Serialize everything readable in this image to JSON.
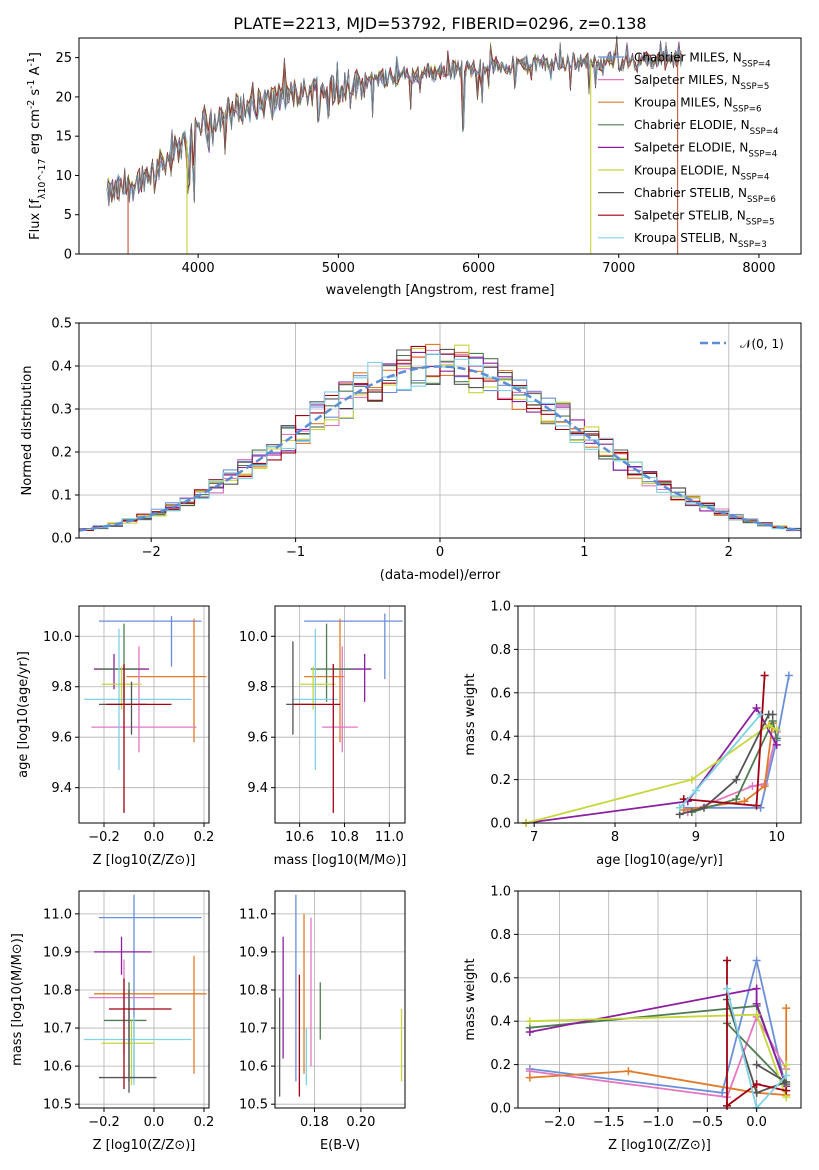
{
  "figure_title": "PLATE=2213, MJD=53792, FIBERID=0296, z=0.138",
  "colors": [
    "#ff7f0e",
    "#1f77b4",
    "#2ca02c",
    "#4e7d52",
    "#8c1fa0",
    "#c7d63a",
    "#555555",
    "#a00012",
    "#7fd3e6",
    "#e377c2",
    "#6a8fd8"
  ],
  "chart_data": [
    {
      "id": "spectrum",
      "type": "line",
      "xlabel": "wavelength [Angstrom, rest frame]",
      "ylabel": "Flux [f_λ10^-17 erg cm^-2 s^-1 A^-1]",
      "xlim": [
        3150,
        8300
      ],
      "ylim": [
        0,
        27.5
      ],
      "xticks": [
        4000,
        5000,
        6000,
        7000,
        8000
      ],
      "yticks": [
        0,
        5,
        10,
        15,
        20,
        25
      ],
      "grid": false,
      "legend_position": "right",
      "series": [
        {
          "name": "Chabrier MILES, N_SSP=4",
          "color": "#6a8fd8"
        },
        {
          "name": "Salpeter MILES, N_SSP=5",
          "color": "#e377c2"
        },
        {
          "name": "Kroupa MILES, N_SSP=6",
          "color": "#e07b2a"
        },
        {
          "name": "Chabrier ELODIE, N_SSP=4",
          "color": "#4e7d52"
        },
        {
          "name": "Salpeter ELODIE, N_SSP=4",
          "color": "#8c1fa0"
        },
        {
          "name": "Kroupa ELODIE, N_SSP=4",
          "color": "#c7d63a"
        },
        {
          "name": "Chabrier STELIB, N_SSP=6",
          "color": "#555555"
        },
        {
          "name": "Salpeter STELIB, N_SSP=5",
          "color": "#a00012"
        },
        {
          "name": "Kroupa STELIB, N_SSP=3",
          "color": "#7fd3e6"
        }
      ],
      "continuum": {
        "x": [
          3350,
          3500,
          3700,
          3900,
          4000,
          4200,
          4500,
          4800,
          5000,
          5300,
          5600,
          6000,
          6400,
          6800,
          7200,
          7450
        ],
        "y": [
          7.5,
          8.5,
          11,
          14,
          16.5,
          18,
          19.5,
          20.8,
          21.2,
          22.3,
          23,
          23.8,
          24.2,
          24.5,
          24.6,
          24.7
        ]
      }
    },
    {
      "id": "residuals",
      "type": "line",
      "xlabel": "(data-model)/error",
      "ylabel": "Normed distribution",
      "xlim": [
        -2.5,
        2.5
      ],
      "ylim": [
        0,
        0.5
      ],
      "xticks": [
        -2,
        -1,
        0,
        1,
        2
      ],
      "yticks": [
        0.0,
        0.1,
        0.2,
        0.3,
        0.4,
        0.5
      ],
      "grid": true,
      "legend_position": "upper right",
      "legend_label": "𝒩(0, 1)",
      "bin_width": 0.1
    },
    {
      "id": "age-vs-Z",
      "type": "scatter",
      "xlabel": "Z [log10(Z/Z⊙)]",
      "ylabel": "age  [log10(age/yr)]",
      "xlim": [
        -0.3,
        0.22
      ],
      "ylim": [
        9.26,
        10.12
      ],
      "xticks": [
        -0.2,
        0.0,
        0.2
      ],
      "yticks": [
        9.4,
        9.6,
        9.8,
        10.0
      ],
      "grid": true,
      "points": [
        {
          "color": "#6a8fd8",
          "x": 0.07,
          "xlo": -0.22,
          "xhi": 0.19,
          "y": 10.06,
          "ylo": 9.88,
          "yhi": 10.08
        },
        {
          "color": "#e07b2a",
          "x": 0.16,
          "xlo": -0.11,
          "xhi": 0.21,
          "y": 9.84,
          "ylo": 9.58,
          "yhi": 10.07
        },
        {
          "color": "#e377c2",
          "x": -0.06,
          "xlo": -0.25,
          "xhi": 0.17,
          "y": 9.64,
          "ylo": 9.54,
          "yhi": 9.96
        },
        {
          "color": "#8c1fa0",
          "x": -0.16,
          "xlo": -0.24,
          "xhi": -0.02,
          "y": 9.87,
          "ylo": 9.79,
          "yhi": 9.93
        },
        {
          "color": "#4e7d52",
          "x": -0.12,
          "xlo": -0.22,
          "xhi": -0.06,
          "y": 9.87,
          "ylo": 9.74,
          "yhi": 10.05
        },
        {
          "color": "#c7d63a",
          "x": -0.13,
          "xlo": -0.21,
          "xhi": -0.05,
          "y": 9.81,
          "ylo": 9.71,
          "yhi": 9.88
        },
        {
          "color": "#7fd3e6",
          "x": -0.14,
          "xlo": -0.28,
          "xhi": 0.15,
          "y": 9.75,
          "ylo": 9.47,
          "yhi": 10.03
        },
        {
          "color": "#555555",
          "x": -0.09,
          "xlo": -0.22,
          "xhi": -0.03,
          "y": 9.73,
          "ylo": 9.61,
          "yhi": 9.82
        },
        {
          "color": "#a00012",
          "x": -0.12,
          "xlo": -0.19,
          "xhi": 0.07,
          "y": 9.73,
          "ylo": 9.3,
          "yhi": 9.89
        }
      ]
    },
    {
      "id": "age-vs-mass",
      "type": "scatter",
      "xlabel": "mass [log10(M/M⊙)]",
      "ylabel": "",
      "xlim": [
        10.49,
        11.07
      ],
      "ylim": [
        9.26,
        10.12
      ],
      "xticks": [
        10.6,
        10.8,
        11.0
      ],
      "yticks": [
        9.4,
        9.6,
        9.8,
        10.0
      ],
      "grid": true,
      "points": [
        {
          "color": "#6a8fd8",
          "x": 10.98,
          "xlo": 10.62,
          "xhi": 11.06,
          "y": 10.06,
          "ylo": 9.83,
          "yhi": 10.09
        },
        {
          "color": "#e07b2a",
          "x": 10.78,
          "xlo": 10.62,
          "xhi": 10.8,
          "y": 9.84,
          "ylo": 9.58,
          "yhi": 10.07
        },
        {
          "color": "#e377c2",
          "x": 10.79,
          "xlo": 10.7,
          "xhi": 10.86,
          "y": 9.64,
          "ylo": 9.54,
          "yhi": 9.96
        },
        {
          "color": "#8c1fa0",
          "x": 10.89,
          "xlo": 10.75,
          "xhi": 10.92,
          "y": 9.87,
          "ylo": 9.74,
          "yhi": 9.93
        },
        {
          "color": "#4e7d52",
          "x": 10.72,
          "xlo": 10.65,
          "xhi": 10.84,
          "y": 9.87,
          "ylo": 9.74,
          "yhi": 10.05
        },
        {
          "color": "#c7d63a",
          "x": 10.66,
          "xlo": 10.6,
          "xhi": 10.76,
          "y": 9.81,
          "ylo": 9.71,
          "yhi": 9.88
        },
        {
          "color": "#7fd3e6",
          "x": 10.67,
          "xlo": 10.57,
          "xhi": 10.77,
          "y": 9.75,
          "ylo": 9.47,
          "yhi": 10.03
        },
        {
          "color": "#555555",
          "x": 10.57,
          "xlo": 10.54,
          "xhi": 10.65,
          "y": 9.73,
          "ylo": 9.61,
          "yhi": 9.98
        },
        {
          "color": "#a00012",
          "x": 10.75,
          "xlo": 10.57,
          "xhi": 10.78,
          "y": 9.73,
          "ylo": 9.3,
          "yhi": 9.89
        }
      ]
    },
    {
      "id": "weight-vs-age",
      "type": "line",
      "xlabel": "age  [log10(age/yr)]",
      "ylabel": "mass weight",
      "xlim": [
        6.8,
        10.3
      ],
      "ylim": [
        0,
        1.0
      ],
      "xticks": [
        7,
        8,
        9,
        10
      ],
      "yticks": [
        0.0,
        0.2,
        0.4,
        0.6,
        0.8,
        1.0
      ],
      "grid": true,
      "series": [
        {
          "color": "#6a8fd8",
          "x": [
            8.85,
            9.8,
            10.0,
            10.15
          ],
          "y": [
            0.07,
            0.07,
            0.38,
            0.68
          ]
        },
        {
          "color": "#e377c2",
          "x": [
            8.9,
            9.7,
            9.85,
            10.0
          ],
          "y": [
            0.05,
            0.17,
            0.18,
            0.42
          ]
        },
        {
          "color": "#e07b2a",
          "x": [
            8.85,
            9.6,
            9.85,
            9.95
          ],
          "y": [
            0.06,
            0.1,
            0.17,
            0.46
          ]
        },
        {
          "color": "#4e7d52",
          "x": [
            8.95,
            9.5,
            9.95,
            10.0
          ],
          "y": [
            0.05,
            0.11,
            0.47,
            0.39
          ]
        },
        {
          "color": "#8c1fa0",
          "x": [
            6.9,
            8.9,
            9.75,
            10.0
          ],
          "y": [
            0.0,
            0.1,
            0.53,
            0.36
          ]
        },
        {
          "color": "#c7d63a",
          "x": [
            6.9,
            8.95,
            9.9,
            10.0
          ],
          "y": [
            0.0,
            0.2,
            0.45,
            0.43
          ]
        },
        {
          "color": "#555555",
          "x": [
            8.8,
            9.1,
            9.5,
            9.9,
            9.95
          ],
          "y": [
            0.04,
            0.07,
            0.2,
            0.5,
            0.5
          ]
        },
        {
          "color": "#a00012",
          "x": [
            8.85,
            9.75,
            9.85
          ],
          "y": [
            0.11,
            0.08,
            0.68
          ]
        },
        {
          "color": "#7fd3e6",
          "x": [
            8.8,
            9.0,
            9.8
          ],
          "y": [
            0.07,
            0.15,
            0.5
          ]
        }
      ]
    },
    {
      "id": "mass-vs-Z",
      "type": "scatter",
      "xlabel": "Z [log10(Z/Z⊙)]",
      "ylabel": "mass [log10(M/M⊙)]",
      "xlim": [
        -0.3,
        0.22
      ],
      "ylim": [
        10.49,
        11.06
      ],
      "xticks": [
        -0.2,
        0.0,
        0.2
      ],
      "yticks": [
        10.5,
        10.6,
        10.7,
        10.8,
        10.9,
        11.0
      ],
      "grid": true,
      "points": [
        {
          "color": "#6a8fd8",
          "x": -0.08,
          "xlo": -0.22,
          "xhi": 0.19,
          "y": 10.99,
          "ylo": 10.57,
          "yhi": 11.05
        },
        {
          "color": "#e07b2a",
          "x": 0.16,
          "xlo": -0.24,
          "xhi": 0.21,
          "y": 10.79,
          "ylo": 10.58,
          "yhi": 10.89
        },
        {
          "color": "#e377c2",
          "x": -0.12,
          "xlo": -0.26,
          "xhi": 0.0,
          "y": 10.78,
          "ylo": 10.63,
          "yhi": 10.88
        },
        {
          "color": "#8c1fa0",
          "x": -0.13,
          "xlo": -0.24,
          "xhi": -0.01,
          "y": 10.9,
          "ylo": 10.84,
          "yhi": 10.94
        },
        {
          "color": "#4e7d52",
          "x": -0.1,
          "xlo": -0.2,
          "xhi": -0.03,
          "y": 10.72,
          "ylo": 10.56,
          "yhi": 10.82
        },
        {
          "color": "#c7d63a",
          "x": -0.09,
          "xlo": -0.21,
          "xhi": 0.0,
          "y": 10.66,
          "ylo": 10.55,
          "yhi": 10.72
        },
        {
          "color": "#7fd3e6",
          "x": -0.08,
          "xlo": -0.28,
          "xhi": 0.15,
          "y": 10.67,
          "ylo": 10.55,
          "yhi": 10.73
        },
        {
          "color": "#555555",
          "x": -0.1,
          "xlo": -0.22,
          "xhi": 0.01,
          "y": 10.57,
          "ylo": 10.53,
          "yhi": 10.8
        },
        {
          "color": "#a00012",
          "x": -0.12,
          "xlo": -0.18,
          "xhi": 0.07,
          "y": 10.75,
          "ylo": 10.54,
          "yhi": 10.83
        }
      ]
    },
    {
      "id": "mass-vs-EBV",
      "type": "scatter",
      "xlabel": "E(B-V)",
      "ylabel": "",
      "xlim": [
        0.163,
        0.219
      ],
      "ylim": [
        10.49,
        11.06
      ],
      "xticks": [
        0.18,
        0.2
      ],
      "yticks": [
        10.5,
        10.6,
        10.7,
        10.8,
        10.9,
        11.0
      ],
      "grid": true,
      "points": [
        {
          "color": "#6a8fd8",
          "x": 0.172,
          "ylo": 10.56,
          "yhi": 11.05
        },
        {
          "color": "#e07b2a",
          "x": 0.1755,
          "ylo": 10.58,
          "yhi": 11.0
        },
        {
          "color": "#e377c2",
          "x": 0.1785,
          "ylo": 10.6,
          "yhi": 10.99
        },
        {
          "color": "#8c1fa0",
          "x": 0.1665,
          "ylo": 10.62,
          "yhi": 10.94
        },
        {
          "color": "#4e7d52",
          "x": 0.1825,
          "ylo": 10.67,
          "yhi": 10.82
        },
        {
          "color": "#c7d63a",
          "x": 0.2175,
          "ylo": 10.56,
          "yhi": 10.75
        },
        {
          "color": "#7fd3e6",
          "x": 0.1765,
          "ylo": 10.55,
          "yhi": 10.7
        },
        {
          "color": "#555555",
          "x": 0.165,
          "ylo": 10.52,
          "yhi": 10.78
        },
        {
          "color": "#a00012",
          "x": 0.1735,
          "ylo": 10.52,
          "yhi": 10.84
        }
      ]
    },
    {
      "id": "weight-vs-Z",
      "type": "line",
      "xlabel": "Z [log10(Z/Z⊙)]",
      "ylabel": "mass weight",
      "xlim": [
        -2.42,
        0.45
      ],
      "ylim": [
        0,
        1.0
      ],
      "xticks": [
        -2.0,
        -1.5,
        -1.0,
        -0.5,
        0.0
      ],
      "yticks": [
        0.0,
        0.2,
        0.4,
        0.6,
        0.8,
        1.0
      ],
      "grid": true,
      "series": [
        {
          "color": "#6a8fd8",
          "x": [
            -2.3,
            -0.35,
            0.0,
            0.3
          ],
          "y": [
            0.18,
            0.07,
            0.68,
            0.08
          ]
        },
        {
          "color": "#e377c2",
          "x": [
            -2.3,
            -0.3,
            0.0,
            0.3
          ],
          "y": [
            0.17,
            0.05,
            0.42,
            0.18
          ]
        },
        {
          "color": "#e07b2a",
          "x": [
            -2.3,
            -1.3,
            0.0,
            0.3,
            0.3
          ],
          "y": [
            0.14,
            0.17,
            0.07,
            0.06,
            0.46
          ]
        },
        {
          "color": "#4e7d52",
          "x": [
            -2.3,
            0.0,
            0.3,
            -0.3
          ],
          "y": [
            0.37,
            0.47,
            0.11,
            0.39
          ]
        },
        {
          "color": "#8c1fa0",
          "x": [
            -2.3,
            0.0,
            0.0,
            0.3
          ],
          "y": [
            0.35,
            0.55,
            0.48,
            0.1
          ]
        },
        {
          "color": "#c7d63a",
          "x": [
            -2.3,
            0.0,
            0.3,
            0.3
          ],
          "y": [
            0.4,
            0.43,
            0.05,
            0.2
          ]
        },
        {
          "color": "#555555",
          "x": [
            -0.3,
            0.0,
            0.3,
            0.0
          ],
          "y": [
            0.5,
            0.07,
            0.12,
            0.2
          ]
        },
        {
          "color": "#a00012",
          "x": [
            -0.3,
            -0.3,
            0.0,
            0.3
          ],
          "y": [
            0.68,
            0.01,
            0.11,
            0.08
          ]
        },
        {
          "color": "#7fd3e6",
          "x": [
            -0.3,
            0.0,
            0.3
          ],
          "y": [
            0.55,
            0.0,
            0.15
          ]
        }
      ]
    }
  ]
}
